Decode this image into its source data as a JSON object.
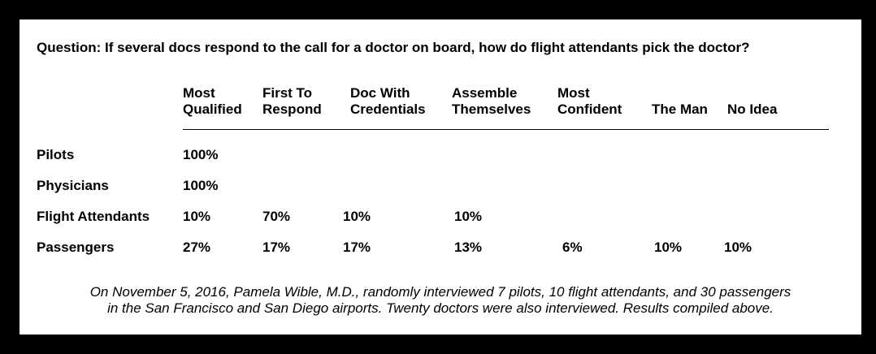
{
  "question": "Question: If several docs respond to the call for a doctor on board, how do flight attendants pick the doctor?",
  "columns": [
    {
      "line1": "Most",
      "line2": "Qualified"
    },
    {
      "line1": "First To",
      "line2": "Respond"
    },
    {
      "line1": "Doc With",
      "line2": "Credentials"
    },
    {
      "line1": "Assemble",
      "line2": "Themselves"
    },
    {
      "line1": "Most",
      "line2": "Confident"
    },
    {
      "line1": "",
      "line2": "The Man"
    },
    {
      "line1": "",
      "line2": "No Idea"
    }
  ],
  "rows": [
    {
      "label": "Pilots",
      "values": [
        "100%",
        "",
        "",
        "",
        "",
        "",
        ""
      ]
    },
    {
      "label": "Physicians",
      "values": [
        "100%",
        "",
        "",
        "",
        "",
        "",
        ""
      ]
    },
    {
      "label": "Flight Attendants",
      "values": [
        "10%",
        "70%",
        "10%",
        "10%",
        "",
        "",
        ""
      ]
    },
    {
      "label": "Passengers",
      "values": [
        "27%",
        "17%",
        "17%",
        "13%",
        "6%",
        "10%",
        "10%"
      ]
    }
  ],
  "footnote": {
    "line1": "On November 5, 2016, Pamela Wible, M.D., randomly interviewed 7 pilots, 10 flight attendants, and 30 passengers",
    "line2": "in the San Francisco and San Diego airports. Twenty doctors were also interviewed. Results compiled above."
  }
}
